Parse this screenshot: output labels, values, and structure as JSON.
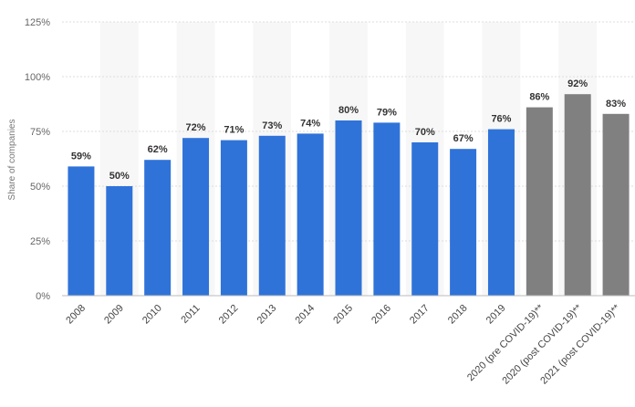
{
  "chart_data": {
    "type": "bar",
    "ylabel": "Share of companies",
    "xlabel": "",
    "ylim": [
      0,
      125
    ],
    "yticks": [
      0,
      25,
      50,
      75,
      100,
      125
    ],
    "ytick_labels": [
      "0%",
      "25%",
      "50%",
      "75%",
      "100%",
      "125%"
    ],
    "grid": true,
    "categories": [
      "2008",
      "2009",
      "2010",
      "2011",
      "2012",
      "2013",
      "2014",
      "2015",
      "2016",
      "2017",
      "2018",
      "2019",
      "2020 (pre COVID-19)**",
      "2020 (post COVID-19)**",
      "2021 (post COVID-19)**"
    ],
    "values": [
      59,
      50,
      62,
      72,
      71,
      73,
      74,
      80,
      79,
      70,
      67,
      76,
      86,
      92,
      83
    ],
    "value_labels": [
      "59%",
      "50%",
      "62%",
      "72%",
      "71%",
      "73%",
      "74%",
      "80%",
      "79%",
      "70%",
      "67%",
      "76%",
      "86%",
      "92%",
      "83%"
    ],
    "bar_colors": [
      "#2f73d9",
      "#2f73d9",
      "#2f73d9",
      "#2f73d9",
      "#2f73d9",
      "#2f73d9",
      "#2f73d9",
      "#2f73d9",
      "#2f73d9",
      "#2f73d9",
      "#2f73d9",
      "#2f73d9",
      "#808080",
      "#808080",
      "#808080"
    ],
    "grid_color": "#dddddd",
    "band_color": "#f7f7f7"
  }
}
